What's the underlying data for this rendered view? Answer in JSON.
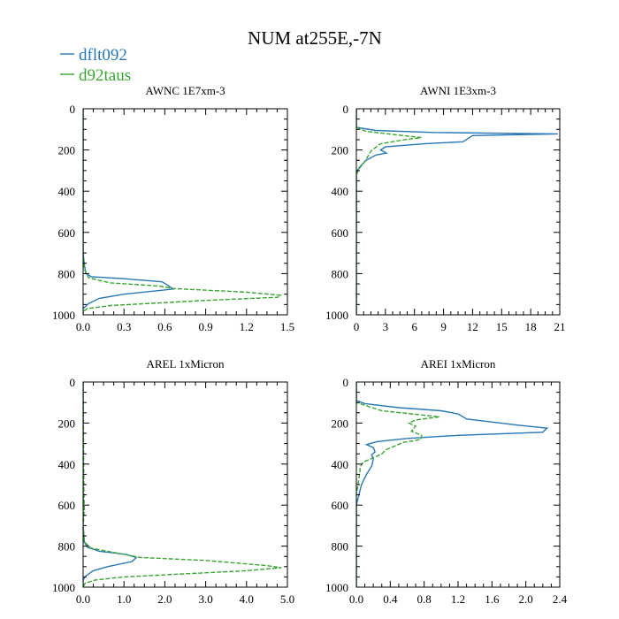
{
  "figure": {
    "title": "NUM at255E,-7N",
    "legend": [
      {
        "label": "dflt092",
        "color": "#2878b5",
        "dash": "solid"
      },
      {
        "label": "d92taus",
        "color": "#3aa532",
        "dash": "dashed"
      }
    ]
  },
  "chart_data": [
    {
      "type": "line",
      "title": "AWNC  1E7xm-3",
      "xlim": [
        0,
        1.5
      ],
      "ylim": [
        1000,
        0
      ],
      "xticks": [
        "0.0",
        "0.3",
        "0.6",
        "0.9",
        "1.2",
        "1.5"
      ],
      "yticks": [
        "0",
        "200",
        "400",
        "600",
        "800",
        "1000"
      ],
      "series": [
        {
          "name": "dflt092",
          "points": [
            [
              0,
              0
            ],
            [
              0,
              700
            ],
            [
              0.01,
              760
            ],
            [
              0.02,
              800
            ],
            [
              0.06,
              815
            ],
            [
              0.3,
              825
            ],
            [
              0.58,
              840
            ],
            [
              0.63,
              860
            ],
            [
              0.66,
              875
            ],
            [
              0.3,
              900
            ],
            [
              0.12,
              920
            ],
            [
              0.04,
              945
            ],
            [
              0.0,
              970
            ],
            [
              0,
              1000
            ]
          ]
        },
        {
          "name": "d92taus",
          "points": [
            [
              0,
              0
            ],
            [
              0,
              700
            ],
            [
              0.01,
              780
            ],
            [
              0.04,
              820
            ],
            [
              0.2,
              845
            ],
            [
              0.55,
              860
            ],
            [
              0.67,
              873
            ],
            [
              1.2,
              890
            ],
            [
              1.45,
              905
            ],
            [
              1.43,
              915
            ],
            [
              0.9,
              930
            ],
            [
              0.2,
              955
            ],
            [
              0.03,
              970
            ],
            [
              0,
              985
            ],
            [
              0,
              1000
            ]
          ]
        }
      ]
    },
    {
      "type": "line",
      "title": "AWNI  1E3xm-3",
      "xlim": [
        0,
        21
      ],
      "ylim": [
        1000,
        0
      ],
      "xticks": [
        "0",
        "3",
        "6",
        "9",
        "12",
        "15",
        "18",
        "21"
      ],
      "yticks": [
        "0",
        "200",
        "400",
        "600",
        "800",
        "1000"
      ],
      "series": [
        {
          "name": "dflt092",
          "points": [
            [
              0,
              0
            ],
            [
              0,
              90
            ],
            [
              2,
              105
            ],
            [
              8,
              115
            ],
            [
              20.8,
              122
            ],
            [
              12,
              130
            ],
            [
              11,
              160
            ],
            [
              7,
              170
            ],
            [
              3,
              185
            ],
            [
              2.5,
              200
            ],
            [
              3.1,
              215
            ],
            [
              2,
              225
            ],
            [
              1,
              250
            ],
            [
              0.4,
              280
            ],
            [
              0.1,
              300
            ],
            [
              0,
              320
            ],
            [
              0,
              1000
            ]
          ]
        },
        {
          "name": "d92taus",
          "points": [
            [
              0,
              0
            ],
            [
              0,
              90
            ],
            [
              1,
              110
            ],
            [
              6.7,
              140
            ],
            [
              5,
              150
            ],
            [
              2.5,
              170
            ],
            [
              1.5,
              205
            ],
            [
              1.2,
              230
            ],
            [
              0.8,
              260
            ],
            [
              0.3,
              290
            ],
            [
              0,
              320
            ],
            [
              0,
              1000
            ]
          ]
        }
      ]
    },
    {
      "type": "line",
      "title": "AREL  1xMicron",
      "xlim": [
        0,
        5.0
      ],
      "ylim": [
        1000,
        0
      ],
      "xticks": [
        "0.0",
        "1.0",
        "2.0",
        "3.0",
        "4.0",
        "5.0"
      ],
      "yticks": [
        "0",
        "200",
        "400",
        "600",
        "800",
        "1000"
      ],
      "series": [
        {
          "name": "dflt092",
          "points": [
            [
              0,
              0
            ],
            [
              0,
              700
            ],
            [
              0.03,
              780
            ],
            [
              0.1,
              805
            ],
            [
              0.4,
              825
            ],
            [
              1.05,
              840
            ],
            [
              1.3,
              855
            ],
            [
              1.2,
              875
            ],
            [
              0.6,
              900
            ],
            [
              0.25,
              920
            ],
            [
              0.07,
              945
            ],
            [
              0,
              965
            ],
            [
              0,
              1000
            ]
          ]
        },
        {
          "name": "d92taus",
          "points": [
            [
              0,
              0
            ],
            [
              0.02,
              550
            ],
            [
              0.03,
              620
            ],
            [
              0,
              700
            ],
            [
              0.03,
              780
            ],
            [
              0.2,
              810
            ],
            [
              1.0,
              840
            ],
            [
              1.4,
              855
            ],
            [
              3.0,
              870
            ],
            [
              4.5,
              895
            ],
            [
              4.85,
              905
            ],
            [
              4.0,
              920
            ],
            [
              2.5,
              935
            ],
            [
              1.0,
              950
            ],
            [
              0.3,
              965
            ],
            [
              0.05,
              980
            ],
            [
              0,
              1000
            ]
          ]
        }
      ]
    },
    {
      "type": "line",
      "title": "AREI  1xMicron",
      "xlim": [
        0,
        2.4
      ],
      "ylim": [
        1000,
        0
      ],
      "xticks": [
        "0.0",
        "0.4",
        "0.8",
        "1.2",
        "1.6",
        "2.0",
        "2.4"
      ],
      "yticks": [
        "0",
        "200",
        "400",
        "600",
        "800",
        "1000"
      ],
      "series": [
        {
          "name": "dflt092",
          "points": [
            [
              0,
              0
            ],
            [
              0,
              90
            ],
            [
              0.1,
              105
            ],
            [
              0.5,
              125
            ],
            [
              1.0,
              140
            ],
            [
              1.2,
              155
            ],
            [
              1.3,
              180
            ],
            [
              1.9,
              210
            ],
            [
              2.25,
              225
            ],
            [
              2.2,
              245
            ],
            [
              1.2,
              260
            ],
            [
              0.6,
              275
            ],
            [
              0.25,
              290
            ],
            [
              0.12,
              305
            ],
            [
              0.2,
              320
            ],
            [
              0.22,
              340
            ],
            [
              0.18,
              355
            ],
            [
              0.2,
              375
            ],
            [
              0.18,
              410
            ],
            [
              0.12,
              450
            ],
            [
              0.06,
              500
            ],
            [
              0.03,
              550
            ],
            [
              0,
              600
            ],
            [
              0,
              1000
            ]
          ]
        },
        {
          "name": "d92taus",
          "points": [
            [
              0,
              0
            ],
            [
              0,
              100
            ],
            [
              0.3,
              140
            ],
            [
              0.98,
              170
            ],
            [
              0.7,
              185
            ],
            [
              0.62,
              200
            ],
            [
              0.7,
              215
            ],
            [
              0.65,
              240
            ],
            [
              0.77,
              260
            ],
            [
              0.76,
              280
            ],
            [
              0.55,
              295
            ],
            [
              0.35,
              330
            ],
            [
              0.3,
              350
            ],
            [
              0.2,
              370
            ],
            [
              0.08,
              390
            ],
            [
              0.05,
              410
            ],
            [
              0.02,
              500
            ],
            [
              0,
              550
            ],
            [
              0,
              1000
            ]
          ]
        }
      ]
    }
  ]
}
